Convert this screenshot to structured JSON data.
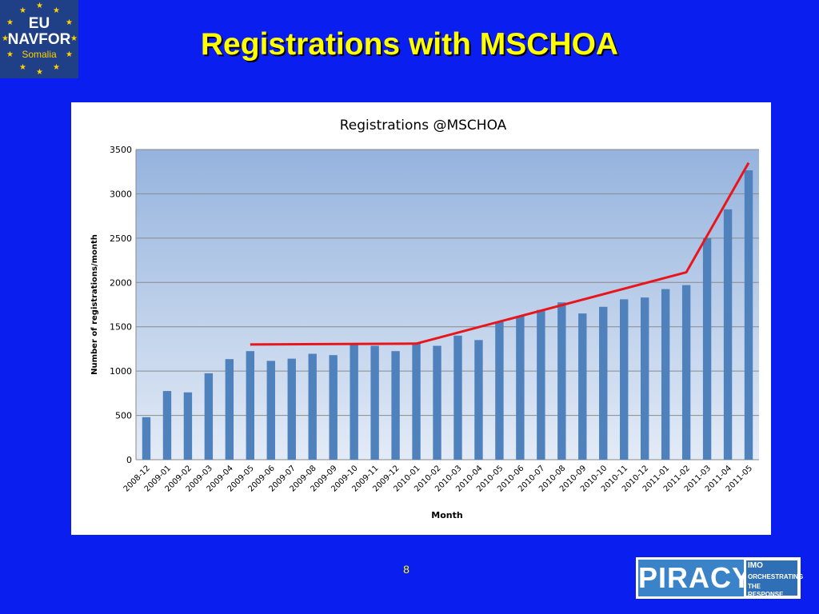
{
  "slide": {
    "title": "Registrations with MSCHOA",
    "page_number": "8",
    "logo": {
      "line1": "EU",
      "line2": "NAVFOR",
      "line3": "Somalia"
    },
    "badge": {
      "word": "PIRACY",
      "org": "IMO",
      "tag1": "ORCHESTRATING",
      "tag2": "THE RESPONSE"
    }
  },
  "colors": {
    "background": "#0b1ef0",
    "title": "#ffff00",
    "bar": "#4f81bd",
    "trend": "#e8161b",
    "plot_top": "#95b3de",
    "plot_bottom": "#e3ebf6"
  },
  "chart_data": {
    "type": "bar",
    "title": "Registrations @MSCHOA",
    "xlabel": "Month",
    "ylabel": "Number of registrations/month",
    "ylim": [
      0,
      3500
    ],
    "yticks": [
      0,
      500,
      1000,
      1500,
      2000,
      2500,
      3000,
      3500
    ],
    "grid": true,
    "categories": [
      "2008-12",
      "2009-01",
      "2009-02",
      "2009-03",
      "2009-04",
      "2009-05",
      "2009-06",
      "2009-07",
      "2009-08",
      "2009-09",
      "2009-10",
      "2009-11",
      "2009-12",
      "2010-01",
      "2010-02",
      "2010-03",
      "2010-04",
      "2010-05",
      "2010-06",
      "2010-07",
      "2010-08",
      "2010-09",
      "2010-10",
      "2010-11",
      "2010-12",
      "2011-01",
      "2011-02",
      "2011-03",
      "2011-04",
      "2011-05"
    ],
    "values": [
      480,
      775,
      760,
      975,
      1135,
      1225,
      1115,
      1140,
      1195,
      1180,
      1305,
      1285,
      1225,
      1320,
      1285,
      1400,
      1350,
      1560,
      1620,
      1690,
      1775,
      1650,
      1725,
      1810,
      1830,
      1925,
      1970,
      2500,
      2825,
      3265
    ],
    "trend_line": {
      "x": [
        "2009-05",
        "2010-01",
        "2011-02",
        "2011-05"
      ],
      "y": [
        1300,
        1310,
        2115,
        3350
      ]
    }
  }
}
